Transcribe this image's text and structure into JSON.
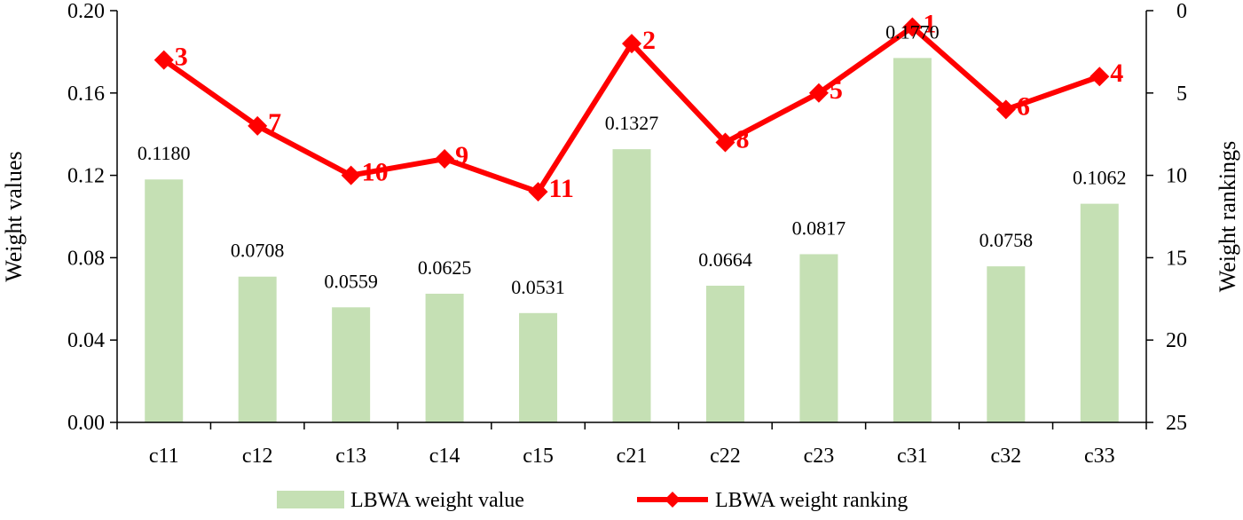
{
  "chart_data": {
    "type": "bar+line",
    "categories": [
      "c11",
      "c12",
      "c13",
      "c14",
      "c15",
      "c21",
      "c22",
      "c23",
      "c31",
      "c32",
      "c33"
    ],
    "series": [
      {
        "name": "LBWA weight value",
        "type": "bar",
        "axis": "left",
        "values": [
          0.118,
          0.0708,
          0.0559,
          0.0625,
          0.0531,
          0.1327,
          0.0664,
          0.0817,
          0.177,
          0.0758,
          0.1062
        ],
        "labels": [
          "0.1180",
          "0.0708",
          "0.0559",
          "0.0625",
          "0.0531",
          "0.1327",
          "0.0664",
          "0.0817",
          "0.1770",
          "0.0758",
          "0.1062"
        ],
        "color": "#c5e0b4"
      },
      {
        "name": "LBWA weight ranking",
        "type": "line",
        "axis": "right",
        "values": [
          3,
          7,
          10,
          9,
          11,
          2,
          8,
          5,
          1,
          6,
          4
        ],
        "labels": [
          "3",
          "7",
          "10",
          "9",
          "11",
          "2",
          "8",
          "5",
          "1",
          "6",
          "4"
        ],
        "color": "#ff0000"
      }
    ],
    "y_left": {
      "label": "Weight values",
      "range": [
        0,
        0.2
      ],
      "ticks": [
        0,
        0.04,
        0.08,
        0.12,
        0.16,
        0.2
      ],
      "tick_labels": [
        "0.00",
        "0.04",
        "0.08",
        "0.12",
        "0.16",
        "0.20"
      ]
    },
    "y_right": {
      "label": "Weight rankings",
      "range": [
        0,
        25
      ],
      "inverted": true,
      "ticks": [
        0,
        5,
        10,
        15,
        20,
        25
      ],
      "tick_labels": [
        "0",
        "5",
        "10",
        "15",
        "20",
        "25"
      ]
    },
    "legend_position": "bottom",
    "grid": false
  }
}
